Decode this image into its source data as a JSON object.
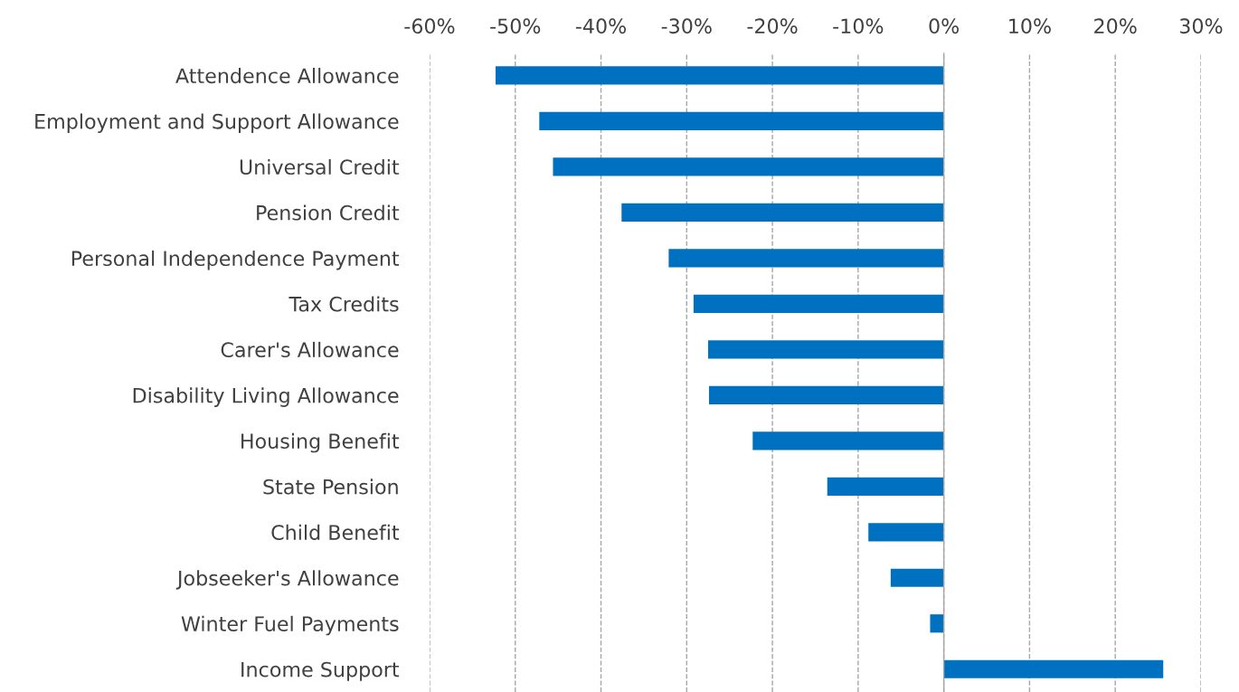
{
  "chart_data": {
    "type": "bar",
    "orientation": "horizontal",
    "categories": [
      "Attendence Allowance",
      "Employment and Support Allowance",
      "Universal Credit",
      "Pension Credit",
      "Personal Independence Payment",
      "Tax Credits",
      "Carer's Allowance",
      "Disability Living Allowance",
      "Housing Benefit",
      "State Pension",
      "Child Benefit",
      "Jobseeker's Allowance",
      "Winter Fuel Payments",
      "Income Support"
    ],
    "values": [
      -52.3,
      -47.2,
      -45.6,
      -37.6,
      -32.1,
      -29.2,
      -27.5,
      -27.4,
      -22.3,
      -13.6,
      -8.8,
      -6.2,
      -1.6,
      25.6
    ],
    "color": "#0070c0",
    "xlim": [
      -60,
      30
    ],
    "xticks": [
      {
        "value": -60,
        "label": "-60%"
      },
      {
        "value": -50,
        "label": "-50%"
      },
      {
        "value": -40,
        "label": "-40%"
      },
      {
        "value": -30,
        "label": "-30%"
      },
      {
        "value": -20,
        "label": "-20%"
      },
      {
        "value": -10,
        "label": "-10%"
      },
      {
        "value": 0,
        "label": "0%"
      },
      {
        "value": 10,
        "label": "10%"
      },
      {
        "value": 20,
        "label": "20%"
      },
      {
        "value": 30,
        "label": "30%"
      }
    ],
    "grid": "x",
    "line_style": "dashed"
  }
}
